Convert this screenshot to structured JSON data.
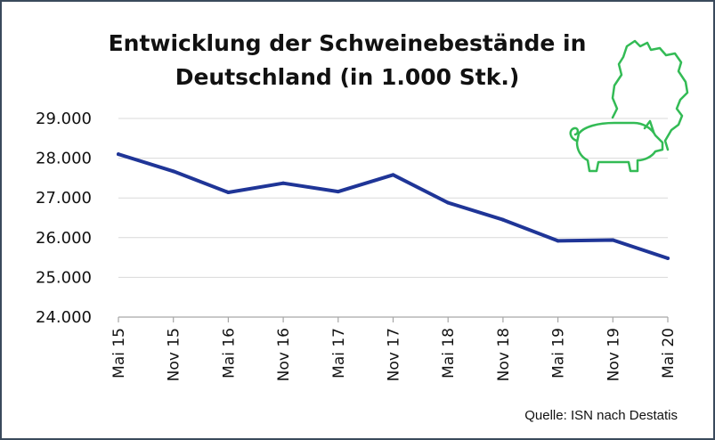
{
  "chart_data": {
    "type": "line",
    "title_line1": "Entwicklung der Schweinebestände in",
    "title_line2": "Deutschland (in 1.000 Stk.)",
    "categories": [
      "Mai 15",
      "Nov 15",
      "Mai 16",
      "Nov 16",
      "Mai 17",
      "Nov 17",
      "Mai 18",
      "Nov 18",
      "Mai 19",
      "Nov 19",
      "Mai 20"
    ],
    "series": [
      {
        "values": [
          28100,
          27670,
          27140,
          27370,
          27160,
          27580,
          26880,
          26450,
          25920,
          25940,
          25480
        ]
      }
    ],
    "ylim": [
      24000,
      29000
    ],
    "yticks": [
      24000,
      25000,
      26000,
      27000,
      28000,
      29000
    ],
    "ytick_labels": [
      "24.000",
      "25.000",
      "26.000",
      "27.000",
      "28.000",
      "29.000"
    ],
    "grid": true,
    "line_color": "#1f3597",
    "grid_color": "#d9d9d9"
  },
  "source_text": "Quelle: ISN nach Destatis",
  "logo": {
    "icon": "pig-germany-map-icon",
    "color": "#33bb55"
  }
}
